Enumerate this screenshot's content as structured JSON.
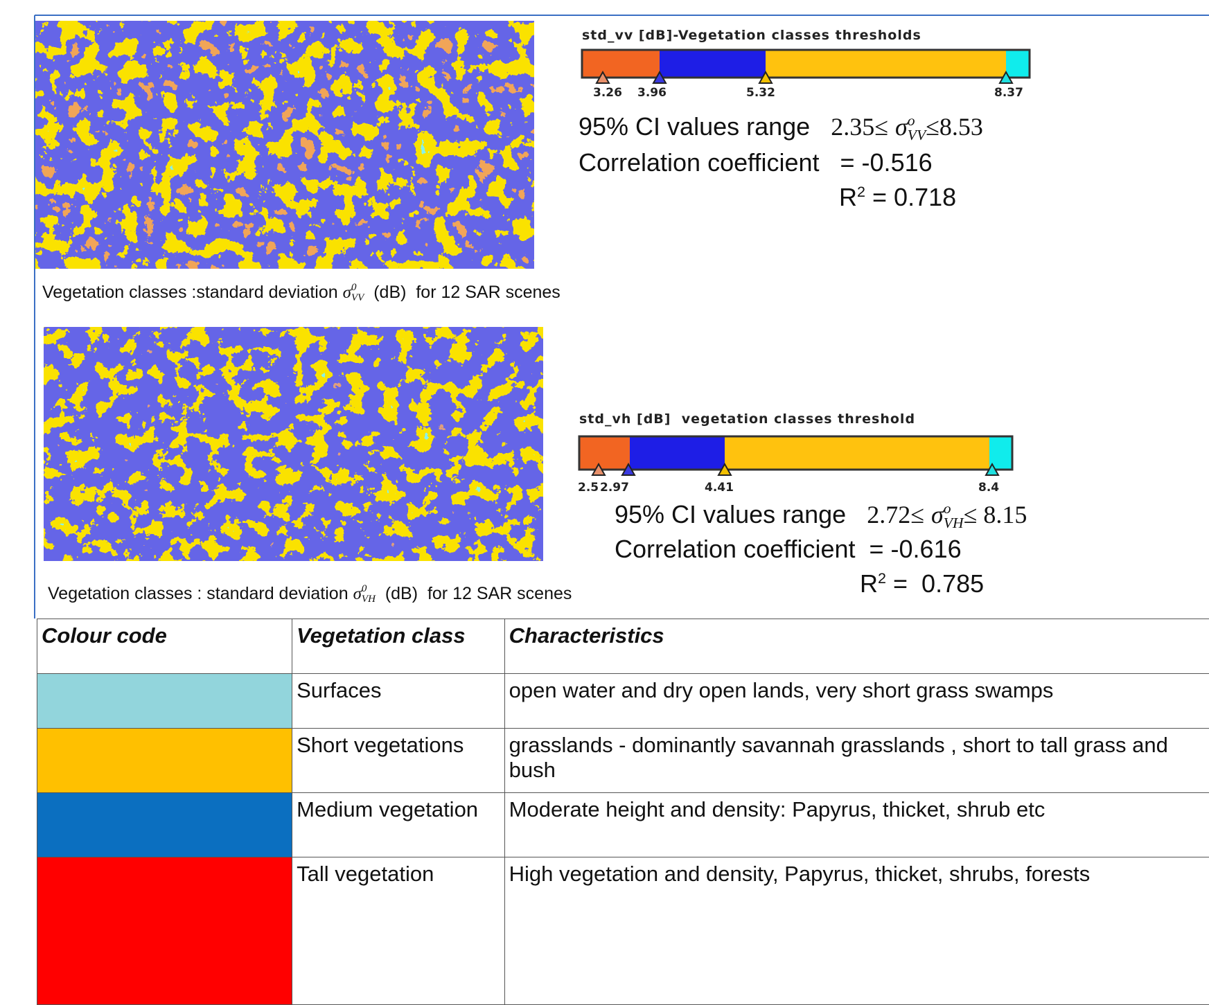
{
  "panels": [
    {
      "bar_title": "std_vv [dB]-Vegetation classes thresholds",
      "thresholds": [
        "3.26",
        "3.96",
        "5.32",
        "8.37"
      ],
      "ci": {
        "label": "95% CI values range",
        "lower": "2.35≤",
        "symbol": "σ",
        "sup": "o",
        "sub": "VV",
        "upper": "≤8.53"
      },
      "correlation": "Correlation coefficient   = -0.516",
      "r2": {
        "base": "R",
        "exp": "2",
        "value": "= 0.718"
      },
      "caption": {
        "text": "Vegetation classes :standard deviation",
        "symbol": "σ",
        "sup": "0",
        "sub": "VV",
        "rest": "(dB)  for 12 SAR scenes"
      }
    },
    {
      "bar_title": "std_vh [dB]  vegetation classes threshold",
      "thresholds": [
        "2.5",
        "2.97",
        "4.41",
        "8.4"
      ],
      "ci": {
        "label": "95% CI values range",
        "lower": "2.72≤",
        "symbol": "σ",
        "sup": "o",
        "sub": "VH",
        "upper": "≤ 8.15"
      },
      "correlation": "Correlation coefficient  = -0.616",
      "r2": {
        "base": "R",
        "exp": "2",
        "value": "=  0.785"
      },
      "caption": {
        "text": "Vegetation classes : standard deviation",
        "symbol": "σ",
        "sup": "0",
        "sub": "VH",
        "rest": "(dB)  for 12 SAR scenes"
      }
    }
  ],
  "table": {
    "headers": [
      "Colour code",
      "Vegetation class",
      "Characteristics"
    ],
    "rows": [
      {
        "color": "#92d5dc",
        "class": "Surfaces",
        "characteristics": "open water and dry open lands, very short grass swamps"
      },
      {
        "color": "#ffc000",
        "class": "Short vegetations",
        "characteristics": "grasslands    - dominantly savannah grasslands , short to tall grass and bush"
      },
      {
        "color": "#0b6fc0",
        "class": " Medium vegetation",
        "characteristics": "Moderate height and  density:  Papyrus, thicket, shrub etc"
      },
      {
        "color": "#ff0000",
        "class": "Tall vegetation",
        "characteristics": "High vegetation and density, Papyrus, thicket, shrubs, forests"
      }
    ]
  }
}
